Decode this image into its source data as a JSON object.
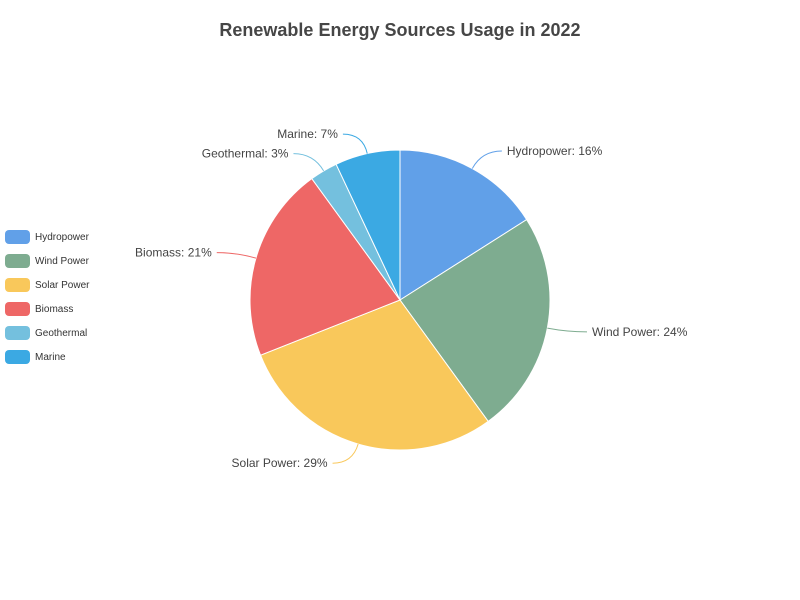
{
  "chart_data": {
    "type": "pie",
    "title": "Renewable Energy Sources Usage in 2022",
    "legend_position": "left",
    "slices": [
      {
        "name": "Hydropower",
        "value": 16,
        "label": "Hydropower: 16%",
        "color": "#61a0e8"
      },
      {
        "name": "Wind Power",
        "value": 24,
        "label": "Wind Power: 24%",
        "color": "#7eac90"
      },
      {
        "name": "Solar Power",
        "value": 29,
        "label": "Solar Power: 29%",
        "color": "#f9c85b"
      },
      {
        "name": "Biomass",
        "value": 21,
        "label": "Biomass: 21%",
        "color": "#ee6766"
      },
      {
        "name": "Geothermal",
        "value": 3,
        "label": "Geothermal: 3%",
        "color": "#74c0de"
      },
      {
        "name": "Marine",
        "value": 7,
        "label": "Marine: 7%",
        "color": "#3ba9e3"
      }
    ]
  }
}
